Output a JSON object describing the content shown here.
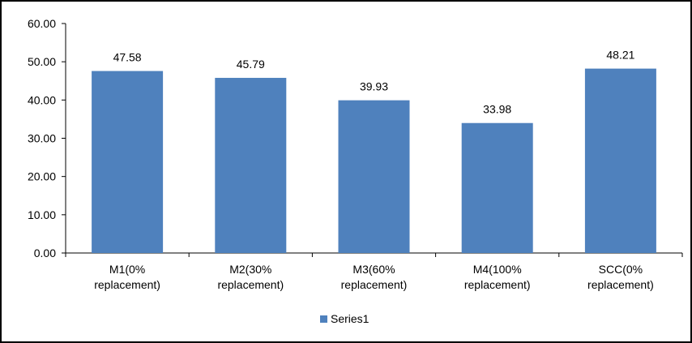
{
  "chart_data": {
    "type": "bar",
    "categories": [
      [
        "M1(0%",
        "replacement)"
      ],
      [
        "M2(30%",
        "replacement)"
      ],
      [
        "M3(60%",
        "replacement)"
      ],
      [
        "M4(100%",
        "replacement)"
      ],
      [
        "SCC(0%",
        "replacement)"
      ]
    ],
    "series": [
      {
        "name": "Series1",
        "values": [
          47.58,
          45.79,
          39.93,
          33.98,
          48.21
        ],
        "color": "#4F81BD"
      }
    ],
    "value_labels": [
      "47.58",
      "45.79",
      "39.93",
      "33.98",
      "48.21"
    ],
    "ylim": [
      0,
      60
    ],
    "yticks": [
      "0.00",
      "10.00",
      "20.00",
      "30.00",
      "40.00",
      "50.00",
      "60.00"
    ],
    "grid": false,
    "legend_position": "bottom"
  }
}
